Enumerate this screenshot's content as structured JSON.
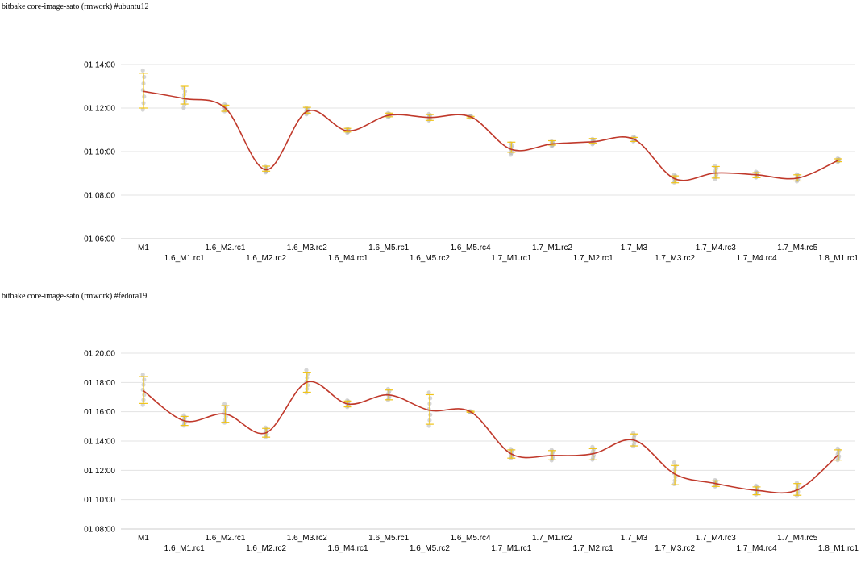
{
  "colors": {
    "line": "#c0392b",
    "error_bar": "#f0c419",
    "point": "#b5b5b5",
    "grid": "#e3e3e3",
    "axis": "#cccccc"
  },
  "chart_data": [
    {
      "type": "line",
      "title": "bitbake core-image-sato (rmwork) #ubuntu12",
      "categories": [
        "M1",
        "1.6_M1.rc1",
        "1.6_M2.rc1",
        "1.6_M2.rc2",
        "1.6_M3.rc2",
        "1.6_M4.rc1",
        "1.6_M5.rc1",
        "1.6_M5.rc2",
        "1.6_M5.rc4",
        "1.7_M1.rc1",
        "1.7_M1.rc2",
        "1.7_M2.rc1",
        "1.7_M3",
        "1.7_M3.rc2",
        "1.7_M4.rc3",
        "1.7_M4.rc4",
        "1.7_M4.rc5",
        "1.8_M1.rc1"
      ],
      "y_ticks": [
        "01:06:00",
        "01:08:00",
        "01:10:00",
        "01:12:00",
        "01:14:00"
      ],
      "ylim_seconds": [
        3960,
        4440
      ],
      "grid": true,
      "series": [
        {
          "mean_seconds": [
            4366,
            4346,
            4320,
            4150,
            4311,
            4257,
            4300,
            4294,
            4296,
            4206,
            4221,
            4227,
            4234,
            4125,
            4141,
            4136,
            4127,
            4176
          ],
          "err_low_seconds": [
            4320,
            4331,
            4311,
            4146,
            4306,
            4254,
            4296,
            4286,
            4293,
            4198,
            4218,
            4223,
            4228,
            4114,
            4127,
            4128,
            4119,
            4172
          ],
          "err_high_seconds": [
            4416,
            4380,
            4328,
            4160,
            4322,
            4264,
            4306,
            4302,
            4297,
            4226,
            4230,
            4236,
            4239,
            4133,
            4159,
            4142,
            4136,
            4180
          ]
        }
      ]
    },
    {
      "type": "line",
      "title": "bitbake core-image-sato (rmwork) #fedora19",
      "categories": [
        "M1",
        "1.6_M1.rc1",
        "1.6_M2.rc1",
        "1.6_M2.rc2",
        "1.6_M3.rc2",
        "1.6_M4.rc1",
        "1.6_M5.rc1",
        "1.6_M5.rc2",
        "1.6_M5.rc4",
        "1.7_M1.rc1",
        "1.7_M1.rc2",
        "1.7_M2.rc1",
        "1.7_M3",
        "1.7_M3.rc2",
        "1.7_M4.rc3",
        "1.7_M4.rc4",
        "1.7_M4.rc5",
        "1.8_M1.rc1"
      ],
      "y_ticks": [
        "01:08:00",
        "01:10:00",
        "01:12:00",
        "01:14:00",
        "01:16:00",
        "01:18:00",
        "01:20:00"
      ],
      "ylim_seconds": [
        4080,
        4800
      ],
      "grid": true,
      "series": [
        {
          "mean_seconds": [
            4646,
            4523,
            4551,
            4474,
            4681,
            4592,
            4629,
            4566,
            4560,
            4387,
            4381,
            4388,
            4444,
            4305,
            4266,
            4238,
            4240,
            4384
          ],
          "err_low_seconds": [
            4594,
            4504,
            4517,
            4456,
            4640,
            4580,
            4609,
            4509,
            4558,
            4370,
            4363,
            4363,
            4420,
            4261,
            4254,
            4220,
            4218,
            4362
          ],
          "err_high_seconds": [
            4704,
            4541,
            4585,
            4492,
            4722,
            4604,
            4649,
            4630,
            4562,
            4404,
            4401,
            4409,
            4469,
            4340,
            4277,
            4252,
            4266,
            4404
          ]
        }
      ]
    }
  ]
}
